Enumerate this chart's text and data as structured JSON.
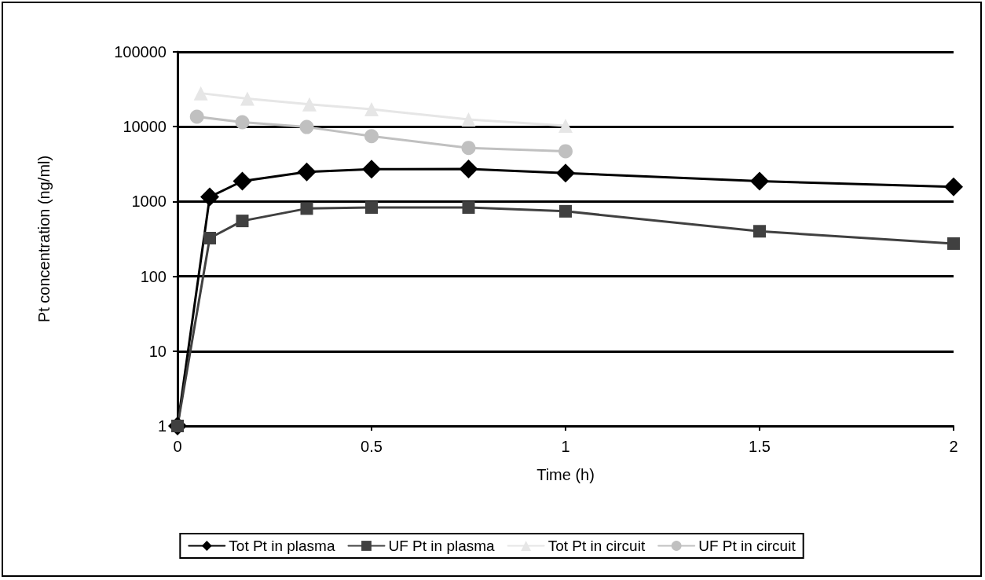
{
  "chart_data": {
    "type": "line",
    "xlabel": "Time (h)",
    "ylabel": "Pt concentration (ng/ml)",
    "log": "y",
    "xlim": [
      0,
      2
    ],
    "xticks": [
      0,
      0.5,
      1,
      1.5,
      2
    ],
    "ylim": [
      1,
      100000
    ],
    "yticks": [
      1,
      10,
      100,
      1000,
      10000,
      100000
    ],
    "grid": "y",
    "legend": "bottom",
    "line_style": "solid",
    "series": [
      {
        "name": "Tot Pt in plasma",
        "color": "#000000",
        "marker": "diamond",
        "x": [
          0,
          0.083,
          0.167,
          0.333,
          0.5,
          0.75,
          1,
          1.5,
          2
        ],
        "values": [
          1,
          1150,
          1870,
          2490,
          2700,
          2730,
          2400,
          1870,
          1570
        ]
      },
      {
        "name": "UF Pt in plasma",
        "color": "#404040",
        "marker": "square",
        "x": [
          0,
          0.083,
          0.167,
          0.333,
          0.5,
          0.75,
          1,
          1.5,
          2
        ],
        "values": [
          1,
          324,
          550,
          805,
          830,
          830,
          740,
          400,
          274
        ]
      },
      {
        "name": "Tot Pt in circuit",
        "color": "#e6e6e6",
        "marker": "triangle",
        "x": [
          0.06,
          0.18,
          0.34,
          0.5,
          0.75,
          1
        ],
        "values": [
          28000,
          23700,
          19900,
          17100,
          12500,
          10300
        ]
      },
      {
        "name": "UF Pt in circuit",
        "color": "#c0c0c0",
        "marker": "circle",
        "x": [
          0.05,
          0.167,
          0.333,
          0.5,
          0.75,
          1
        ],
        "values": [
          13600,
          11500,
          9900,
          7460,
          5210,
          4700
        ]
      }
    ]
  }
}
